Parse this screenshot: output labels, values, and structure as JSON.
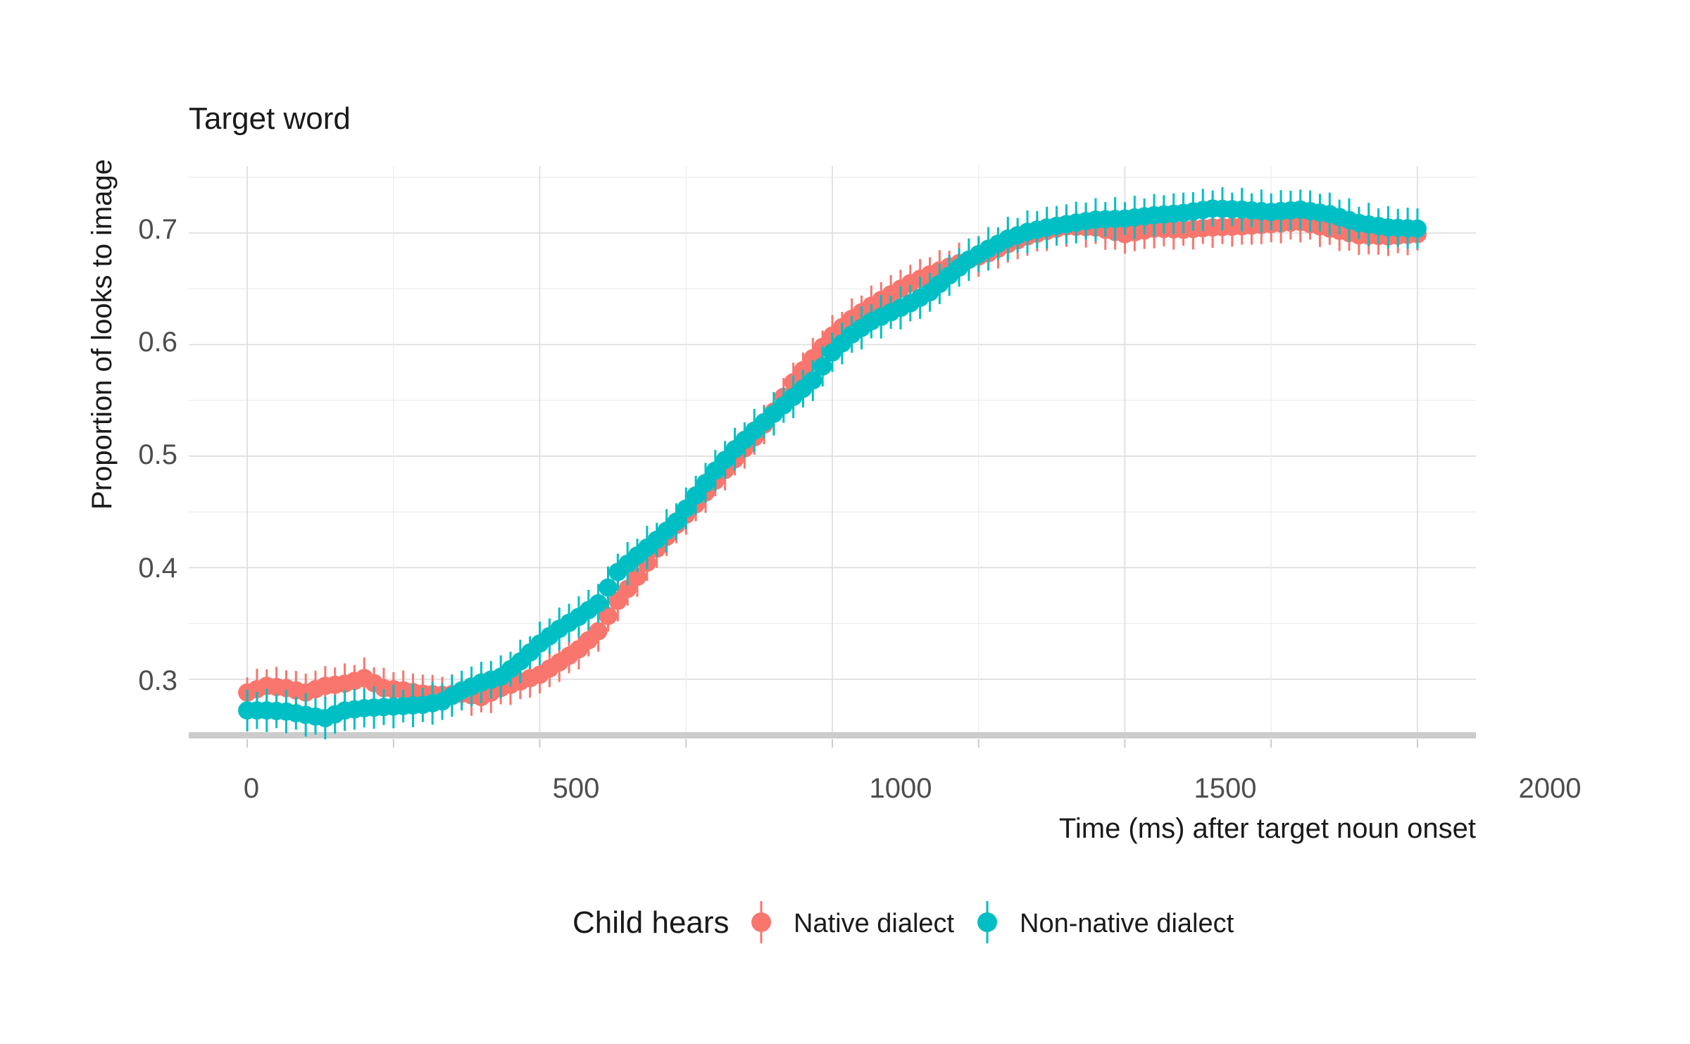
{
  "chart_data": {
    "type": "scatter",
    "title": "Target word",
    "xlabel": "Time (ms) after target noun onset",
    "ylabel": "Proportion of looks to image",
    "xlim": [
      -100,
      2100
    ],
    "ylim": [
      0.25,
      0.76
    ],
    "x_ticks": [
      0,
      500,
      1000,
      1500,
      2000
    ],
    "x_tick_labels": [
      "0",
      "500",
      "1000",
      "1500",
      "2000"
    ],
    "y_ticks": [
      0.3,
      0.4,
      0.5,
      0.6,
      0.7
    ],
    "y_tick_labels": [
      "0.3",
      "0.4",
      "0.5",
      "0.6",
      "0.7"
    ],
    "grid": true,
    "legend": {
      "title": "Child hears",
      "position": "bottom"
    },
    "error_bars": true,
    "x_step": 16.667,
    "series": [
      {
        "name": "Native dialect",
        "color": "#F8766D",
        "anchors_x": [
          0,
          33,
          67,
          100,
          133,
          167,
          200,
          233,
          267,
          300,
          333,
          367,
          400,
          433,
          467,
          500,
          533,
          567,
          600,
          633,
          667,
          700,
          733,
          767,
          800,
          833,
          867,
          900,
          933,
          967,
          1000,
          1033,
          1067,
          1100,
          1133,
          1167,
          1200,
          1233,
          1267,
          1300,
          1333,
          1367,
          1400,
          1450,
          1500,
          1550,
          1600,
          1650,
          1700,
          1750,
          1800,
          1850,
          1900,
          1950,
          2000
        ],
        "anchors_y": [
          0.288,
          0.294,
          0.292,
          0.288,
          0.294,
          0.296,
          0.301,
          0.292,
          0.29,
          0.287,
          0.286,
          0.287,
          0.284,
          0.292,
          0.298,
          0.304,
          0.315,
          0.327,
          0.343,
          0.37,
          0.392,
          0.417,
          0.438,
          0.457,
          0.478,
          0.497,
          0.517,
          0.54,
          0.566,
          0.588,
          0.608,
          0.623,
          0.635,
          0.645,
          0.655,
          0.663,
          0.67,
          0.676,
          0.682,
          0.69,
          0.697,
          0.702,
          0.706,
          0.705,
          0.699,
          0.704,
          0.703,
          0.705,
          0.706,
          0.708,
          0.71,
          0.704,
          0.698,
          0.697,
          0.699
        ],
        "error": 0.016
      },
      {
        "name": "Non-native dialect",
        "color": "#00BFC4",
        "anchors_x": [
          0,
          33,
          67,
          100,
          133,
          167,
          200,
          233,
          267,
          300,
          333,
          367,
          400,
          433,
          467,
          500,
          533,
          567,
          600,
          633,
          667,
          700,
          733,
          767,
          800,
          833,
          867,
          900,
          933,
          967,
          1000,
          1033,
          1067,
          1100,
          1133,
          1167,
          1200,
          1233,
          1267,
          1300,
          1333,
          1367,
          1400,
          1450,
          1500,
          1550,
          1600,
          1650,
          1700,
          1750,
          1800,
          1850,
          1900,
          1950,
          2000
        ],
        "anchors_y": [
          0.272,
          0.272,
          0.271,
          0.268,
          0.265,
          0.272,
          0.274,
          0.275,
          0.276,
          0.277,
          0.28,
          0.29,
          0.297,
          0.302,
          0.316,
          0.332,
          0.345,
          0.356,
          0.368,
          0.396,
          0.411,
          0.425,
          0.441,
          0.465,
          0.487,
          0.506,
          0.523,
          0.538,
          0.553,
          0.568,
          0.593,
          0.609,
          0.621,
          0.629,
          0.637,
          0.647,
          0.662,
          0.676,
          0.686,
          0.695,
          0.701,
          0.705,
          0.708,
          0.712,
          0.713,
          0.716,
          0.718,
          0.722,
          0.721,
          0.719,
          0.721,
          0.717,
          0.709,
          0.705,
          0.704
        ],
        "error": 0.017
      }
    ]
  }
}
